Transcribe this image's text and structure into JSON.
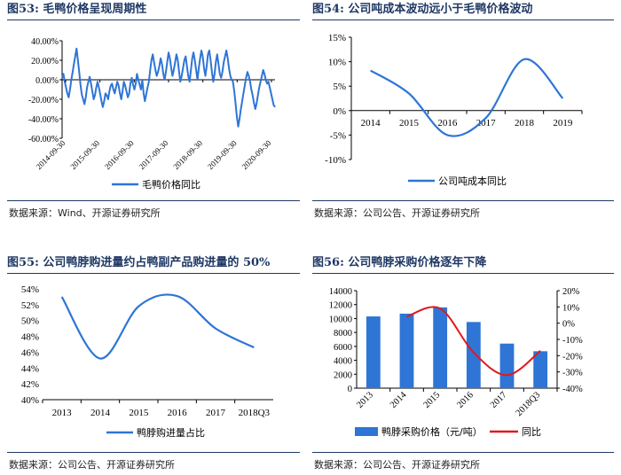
{
  "panels": [
    {
      "title_num": "图53:",
      "title_text": "毛鸭价格呈现周期性",
      "source": "数据来源：Wind、开源证券研究所"
    },
    {
      "title_num": "图54:",
      "title_text": "公司吨成本波动远小于毛鸭价格波动",
      "source": "数据来源：公司公告、开源证券研究所"
    },
    {
      "title_num": "图55:",
      "title_text": "公司鸭脖购进量约占鸭副产品购进量的 50%",
      "source": "数据来源：公司公告、开源证券研究所"
    },
    {
      "title_num": "图56:",
      "title_text": "公司鸭脖采购价格逐年下降",
      "source": "数据来源：公司公告、开源证券研究所"
    }
  ],
  "colors": {
    "line": "#2e75d6",
    "bar": "#2e75d6",
    "red_line": "#e0191e",
    "title": "#1f3864",
    "grid": "#d9d9d9"
  },
  "chart_data": [
    {
      "type": "line",
      "x_tick_labels": [
        "2014-09-30",
        "2015-09-30",
        "2016-09-30",
        "2017-09-30",
        "2018-09-30",
        "2019-09-30",
        "2020-09-30"
      ],
      "ylim": [
        -60,
        40
      ],
      "y_tick_labels": [
        "40.00%",
        "20.00%",
        "0.00%",
        "-20.00%",
        "-40.00%",
        "-60.00%"
      ],
      "legend": "毛鸭价格同比",
      "series": [
        {
          "name": "毛鸭价格同比",
          "values": [
            2,
            6,
            -2,
            -8,
            -14,
            -18,
            -10,
            0,
            8,
            16,
            24,
            32,
            20,
            8,
            -5,
            -15,
            -20,
            -25,
            -18,
            -8,
            -2,
            3,
            -4,
            -12,
            -20,
            -16,
            -8,
            -2,
            -8,
            -15,
            -22,
            -28,
            -22,
            -14,
            -16,
            -20,
            -12,
            -6,
            -4,
            -10,
            -14,
            -8,
            -2,
            -6,
            -14,
            -20,
            -12,
            -2,
            -6,
            -12,
            -18,
            -14,
            -4,
            2,
            -5,
            -10,
            -4,
            6,
            0,
            -5,
            -10,
            0,
            -14,
            -22,
            -15,
            -8,
            -2,
            10,
            20,
            26,
            18,
            10,
            4,
            8,
            14,
            22,
            16,
            6,
            0,
            8,
            18,
            28,
            22,
            12,
            4,
            10,
            18,
            26,
            20,
            8,
            -2,
            4,
            12,
            20,
            24,
            14,
            4,
            -2,
            10,
            22,
            28,
            20,
            10,
            0,
            12,
            22,
            30,
            24,
            12,
            4,
            14,
            26,
            30,
            20,
            8,
            -2,
            6,
            18,
            26,
            16,
            6,
            2,
            8,
            18,
            24,
            30,
            22,
            12,
            4,
            0,
            -2,
            -12,
            -25,
            -38,
            -48,
            -40,
            -30,
            -22,
            -14,
            -6,
            2,
            8,
            4,
            -2,
            -10,
            -16,
            -24,
            -30,
            -24,
            -16,
            -8,
            -2,
            4,
            10,
            6,
            0,
            -4,
            -2,
            -8,
            -14,
            -20,
            -26,
            -28
          ]
        }
      ]
    },
    {
      "type": "line",
      "categories": [
        "2014",
        "2015",
        "2016",
        "2017",
        "2018",
        "2019"
      ],
      "ylim": [
        -10,
        15
      ],
      "y_tick_labels": [
        "15%",
        "10%",
        "5%",
        "0%",
        "-5%",
        "-10%"
      ],
      "legend": "公司吨成本同比",
      "series": [
        {
          "name": "公司吨成本同比",
          "values": [
            8.2,
            3.5,
            -5.0,
            -1.5,
            10.5,
            2.5
          ]
        }
      ]
    },
    {
      "type": "line",
      "categories": [
        "2013",
        "2014",
        "2015",
        "2016",
        "2017",
        "2018Q3"
      ],
      "ylim": [
        40,
        54
      ],
      "y_tick_labels": [
        "54%",
        "52%",
        "50%",
        "48%",
        "46%",
        "44%",
        "42%",
        "40%"
      ],
      "legend": "鸭脖购进量占比",
      "series": [
        {
          "name": "鸭脖购进量占比",
          "values": [
            53.0,
            45.2,
            51.8,
            53.1,
            49.0,
            46.6
          ]
        }
      ]
    },
    {
      "type": "bar",
      "categories": [
        "2013",
        "2014",
        "2015",
        "2016",
        "2017",
        "2018Q3"
      ],
      "ylim": [
        0,
        14000
      ],
      "y2lim": [
        -40,
        20
      ],
      "y_tick_labels": [
        "14000",
        "12000",
        "10000",
        "8000",
        "6000",
        "4000",
        "2000",
        "0"
      ],
      "y2_tick_labels": [
        "20%",
        "10%",
        "0%",
        "-10%",
        "-20%",
        "-30%",
        "-40%"
      ],
      "series": [
        {
          "name": "鸭脖采购价格（元/吨）",
          "type": "bar",
          "values": [
            10300,
            10700,
            11600,
            9500,
            6400,
            5300
          ]
        },
        {
          "name": "同比",
          "type": "line",
          "axis": "right",
          "values": [
            null,
            4,
            9,
            -18,
            -32,
            -17
          ]
        }
      ]
    }
  ]
}
